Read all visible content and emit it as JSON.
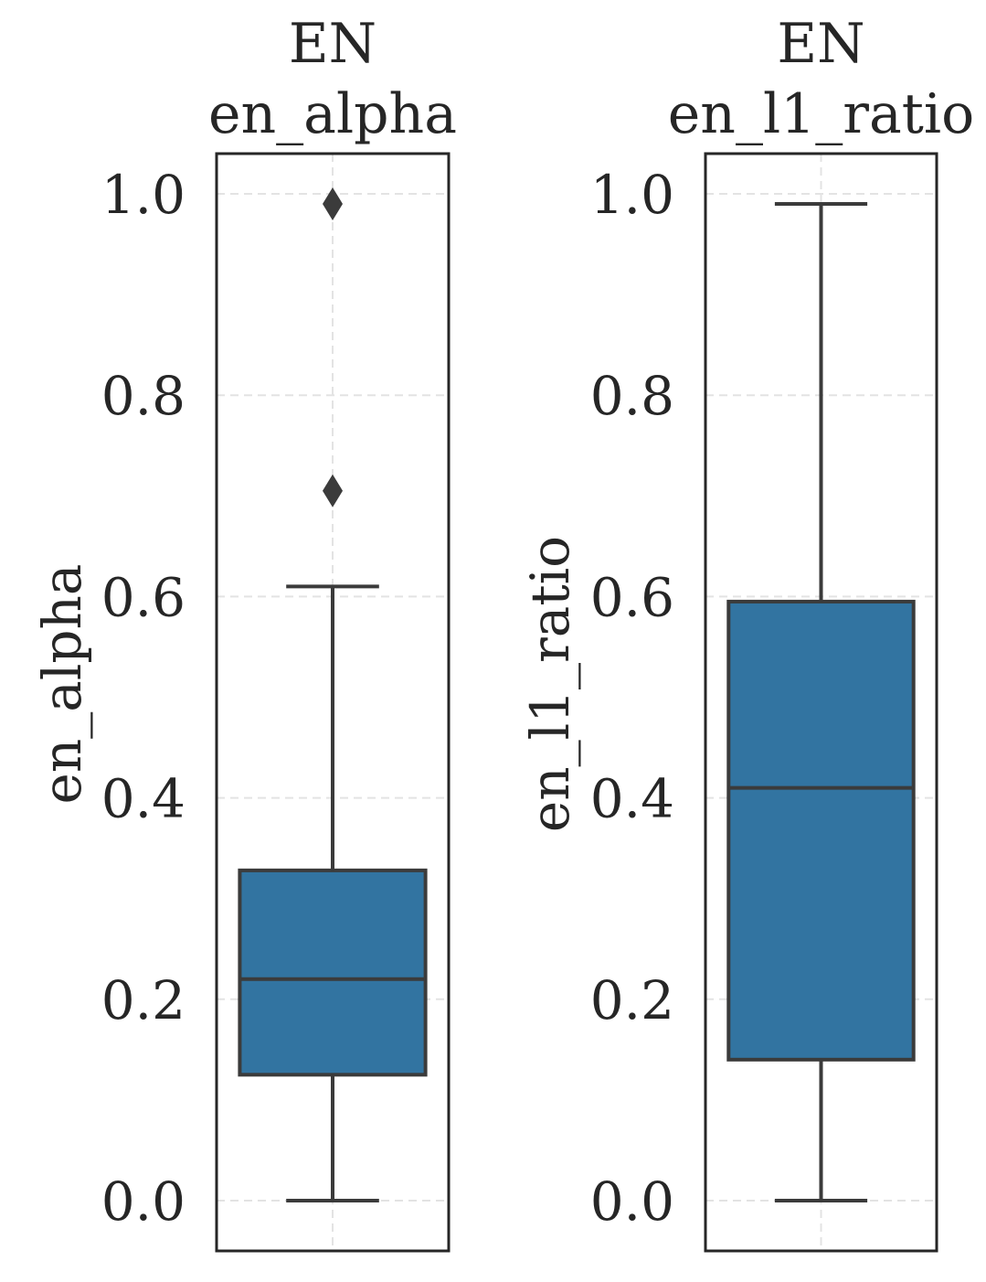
{
  "colors": {
    "box_fill": "#3274a1",
    "box_edge": "#3b3b3b",
    "frame": "#262626",
    "grid": "#e3e3e3",
    "text": "#262626"
  },
  "chart_data": [
    {
      "type": "box",
      "title_line1": "EN",
      "title_line2": "en_alpha",
      "ylabel": "en_alpha",
      "ylim": [
        -0.05,
        1.04
      ],
      "yticks": [
        0.0,
        0.2,
        0.4,
        0.6,
        0.8,
        1.0
      ],
      "ytick_labels": [
        "0.0",
        "0.2",
        "0.4",
        "0.6",
        "0.8",
        "1.0"
      ],
      "grid": true,
      "box": {
        "whisker_low": 0.0,
        "q1": 0.125,
        "median": 0.22,
        "q3": 0.328,
        "whisker_high": 0.61,
        "outliers": [
          0.705,
          0.99
        ]
      }
    },
    {
      "type": "box",
      "title_line1": "EN",
      "title_line2": "en_l1_ratio",
      "ylabel": "en_l1_ratio",
      "ylim": [
        -0.05,
        1.04
      ],
      "yticks": [
        0.0,
        0.2,
        0.4,
        0.6,
        0.8,
        1.0
      ],
      "ytick_labels": [
        "0.0",
        "0.2",
        "0.4",
        "0.6",
        "0.8",
        "1.0"
      ],
      "grid": true,
      "box": {
        "whisker_low": 0.0,
        "q1": 0.14,
        "median": 0.41,
        "q3": 0.595,
        "whisker_high": 0.99,
        "outliers": []
      }
    }
  ]
}
